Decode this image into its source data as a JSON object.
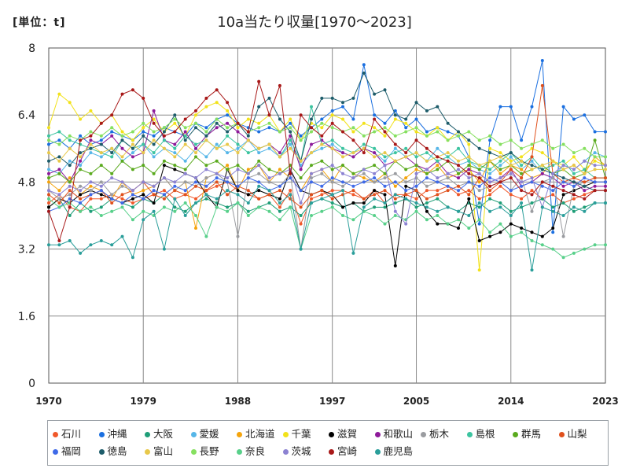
{
  "chart_data": {
    "type": "line",
    "title": "10a当たり収量[1970～2023]",
    "unit_label": "[単位：t]",
    "x_ticks": [
      "1970",
      "1979",
      "1988",
      "1997",
      "2005",
      "2014",
      "2023"
    ],
    "x_range": [
      1970,
      2023
    ],
    "y_ticks": [
      "0",
      "1.6",
      "3.2",
      "4.8",
      "6.4",
      "8"
    ],
    "ylim": [
      0,
      8
    ],
    "grid": true,
    "legend_position": "bottom",
    "series": [
      {
        "name": "石川",
        "color": "#f0582a",
        "values": [
          4.3,
          4.5,
          4.2,
          4.1,
          4.4,
          4.4,
          4.5,
          4.4,
          4.3,
          4.4,
          4.5,
          4.6,
          4.4,
          4.5,
          4.4,
          4.6,
          4.7,
          4.8,
          4.6,
          4.5,
          4.4,
          4.5,
          4.2,
          4.6,
          3.8,
          4.4,
          4.5,
          4.6,
          4.6,
          4.5,
          4.4,
          4.6,
          4.3,
          4.5,
          4.5,
          4.4,
          4.6,
          4.6,
          4.7,
          4.5,
          4.6,
          4.4,
          4.5,
          4.7,
          4.5,
          4.4,
          4.6,
          4.4,
          4.5,
          4.3,
          4.4,
          4.5,
          4.6,
          4.6
        ]
      },
      {
        "name": "沖縄",
        "color": "#1a6fe0",
        "values": [
          5.7,
          5.8,
          5.6,
          5.9,
          5.7,
          5.8,
          6.0,
          5.9,
          5.8,
          6.0,
          5.9,
          6.1,
          6.0,
          5.9,
          6.2,
          6.1,
          6.3,
          6.4,
          6.2,
          6.1,
          6.0,
          6.1,
          6.0,
          6.2,
          5.9,
          6.1,
          6.3,
          6.5,
          6.6,
          6.3,
          7.6,
          6.4,
          6.2,
          6.5,
          6.1,
          6.3,
          6.0,
          6.1,
          6.0,
          5.9,
          5.4,
          3.8,
          5.8,
          6.6,
          6.6,
          5.8,
          6.6,
          7.7,
          3.6,
          6.6,
          6.3,
          6.4,
          6.0,
          6.0
        ]
      },
      {
        "name": "大阪",
        "color": "#1f9e78",
        "values": [
          4.2,
          4.4,
          4.0,
          4.3,
          4.1,
          4.2,
          4.4,
          4.3,
          4.2,
          4.4,
          4.3,
          4.5,
          4.2,
          4.1,
          4.3,
          4.4,
          4.3,
          4.2,
          4.3,
          4.1,
          4.2,
          4.3,
          4.1,
          4.2,
          4.0,
          4.3,
          4.4,
          4.3,
          4.2,
          4.3,
          4.1,
          4.2,
          4.2,
          4.3,
          4.4,
          4.2,
          4.3,
          4.4,
          4.2,
          4.1,
          4.3,
          4.2,
          4.4,
          4.3,
          4.1,
          4.2,
          4.3,
          4.4,
          4.2,
          4.3,
          4.1,
          4.2,
          4.3,
          4.3
        ]
      },
      {
        "name": "愛媛",
        "color": "#56b6e8",
        "values": [
          5.1,
          5.0,
          5.3,
          5.2,
          5.5,
          5.4,
          5.6,
          5.3,
          5.5,
          5.7,
          5.4,
          5.6,
          5.5,
          5.3,
          5.6,
          5.4,
          5.7,
          5.5,
          5.6,
          5.8,
          5.5,
          5.6,
          5.4,
          5.7,
          5.2,
          5.5,
          5.6,
          5.7,
          5.5,
          5.4,
          5.6,
          5.5,
          5.3,
          5.6,
          5.4,
          5.5,
          5.3,
          5.6,
          5.4,
          5.2,
          5.3,
          5.1,
          5.0,
          5.2,
          5.4,
          5.1,
          5.3,
          5.0,
          4.9,
          5.2,
          5.1,
          5.3,
          5.5,
          5.4
        ]
      },
      {
        "name": "北海道",
        "color": "#f5a40c",
        "values": [
          4.8,
          4.6,
          4.9,
          4.5,
          4.7,
          4.6,
          4.4,
          4.8,
          4.5,
          4.6,
          4.7,
          4.9,
          4.6,
          4.8,
          3.7,
          4.9,
          5.0,
          5.2,
          4.6,
          5.1,
          5.2,
          4.8,
          5.1,
          4.9,
          4.6,
          5.0,
          5.1,
          4.8,
          5.2,
          5.0,
          4.9,
          4.8,
          5.0,
          4.7,
          4.9,
          5.1,
          5.0,
          5.2,
          4.9,
          5.0,
          5.1,
          4.8,
          5.3,
          5.0,
          5.2,
          5.1,
          4.9,
          5.0,
          5.3,
          5.1,
          5.2,
          5.0,
          5.4,
          5.2
        ]
      },
      {
        "name": "千葉",
        "color": "#f2e21a",
        "values": [
          6.1,
          6.9,
          6.7,
          6.3,
          6.5,
          6.2,
          6.4,
          6.0,
          5.8,
          6.1,
          6.3,
          6.0,
          6.2,
          5.9,
          6.4,
          6.6,
          6.7,
          6.5,
          6.1,
          6.3,
          6.2,
          6.4,
          6.0,
          6.3,
          5.8,
          6.2,
          6.1,
          6.4,
          6.3,
          6.0,
          6.2,
          6.1,
          5.9,
          6.3,
          6.2,
          6.0,
          5.9,
          6.1,
          5.8,
          6.0,
          5.7,
          2.7,
          5.6,
          5.5,
          5.3,
          5.4,
          5.6,
          5.5,
          5.3,
          5.2,
          5.4,
          5.1,
          5.3,
          5.2
        ]
      },
      {
        "name": "滋賀",
        "color": "#000000",
        "values": [
          4.2,
          4.4,
          4.3,
          4.5,
          4.6,
          4.5,
          4.4,
          4.3,
          4.4,
          4.5,
          4.3,
          5.2,
          5.1,
          5.0,
          4.9,
          4.5,
          4.2,
          5.1,
          4.6,
          4.5,
          4.6,
          4.5,
          4.4,
          5.1,
          4.6,
          4.5,
          4.6,
          4.5,
          4.2,
          4.3,
          4.3,
          4.6,
          4.5,
          2.8,
          4.7,
          4.6,
          4.1,
          3.8,
          3.8,
          3.7,
          4.4,
          3.4,
          3.5,
          3.6,
          3.8,
          3.7,
          3.6,
          3.5,
          3.7,
          4.5,
          4.6,
          4.7,
          4.8,
          4.8
        ]
      },
      {
        "name": "和歌山",
        "color": "#8e1a9a",
        "values": [
          5.0,
          5.1,
          4.8,
          5.3,
          5.8,
          5.7,
          5.9,
          5.6,
          5.4,
          5.5,
          6.5,
          5.8,
          5.7,
          6.0,
          5.6,
          5.9,
          6.1,
          6.2,
          6.0,
          5.8,
          5.6,
          5.7,
          5.5,
          5.9,
          5.1,
          5.7,
          5.8,
          5.6,
          5.5,
          5.4,
          5.6,
          5.5,
          5.2,
          5.3,
          5.4,
          5.2,
          5.1,
          5.3,
          5.0,
          4.9,
          5.1,
          5.0,
          4.8,
          4.9,
          5.1,
          4.7,
          4.8,
          5.0,
          4.9,
          4.7,
          4.8,
          4.6,
          4.7,
          4.7
        ]
      },
      {
        "name": "栃木",
        "color": "#9a9ca0",
        "values": [
          4.6,
          4.4,
          4.5,
          4.7,
          4.6,
          4.8,
          4.5,
          4.7,
          4.6,
          4.8,
          4.7,
          4.9,
          4.6,
          4.8,
          4.7,
          4.9,
          5.0,
          4.8,
          3.5,
          4.9,
          5.0,
          4.8,
          4.7,
          5.0,
          3.2,
          4.9,
          5.0,
          4.8,
          4.7,
          4.9,
          5.0,
          4.8,
          4.9,
          5.0,
          4.8,
          4.9,
          4.7,
          4.8,
          4.9,
          4.7,
          4.8,
          4.6,
          4.7,
          4.8,
          4.6,
          4.9,
          4.1,
          4.8,
          4.9,
          3.5,
          4.7,
          4.8,
          4.9,
          4.9
        ]
      },
      {
        "name": "島根",
        "color": "#3cc4a0",
        "values": [
          5.9,
          6.0,
          5.8,
          5.7,
          5.6,
          5.5,
          5.4,
          5.8,
          5.6,
          5.7,
          5.5,
          5.8,
          5.6,
          5.9,
          5.7,
          5.8,
          5.6,
          5.9,
          5.7,
          5.5,
          5.6,
          5.7,
          5.4,
          5.8,
          5.3,
          6.6,
          5.7,
          5.8,
          5.6,
          5.5,
          5.7,
          5.6,
          5.4,
          5.5,
          5.6,
          5.4,
          5.5,
          5.3,
          5.4,
          5.6,
          5.3,
          5.2,
          5.1,
          5.3,
          5.5,
          5.2,
          5.4,
          5.1,
          5.2,
          5.3,
          5.0,
          5.1,
          4.9,
          4.9
        ]
      },
      {
        "name": "群馬",
        "color": "#5aaa1e",
        "values": [
          4.9,
          5.0,
          4.8,
          5.1,
          5.0,
          5.2,
          5.0,
          5.3,
          5.1,
          5.2,
          5.0,
          5.3,
          5.2,
          5.1,
          5.4,
          5.2,
          5.3,
          5.1,
          5.2,
          5.0,
          5.3,
          5.1,
          5.0,
          5.2,
          4.9,
          5.2,
          5.3,
          5.1,
          5.2,
          5.0,
          5.1,
          5.2,
          5.0,
          5.3,
          5.1,
          5.2,
          5.0,
          5.1,
          5.3,
          5.0,
          5.2,
          5.1,
          5.3,
          5.1,
          5.2,
          5.0,
          5.1,
          5.2,
          5.0,
          5.1,
          4.9,
          5.0,
          5.8,
          4.9
        ]
      },
      {
        "name": "山梨",
        "color": "#e0501c",
        "values": [
          4.5,
          4.3,
          4.6,
          4.4,
          4.5,
          4.6,
          4.3,
          4.5,
          4.6,
          4.8,
          4.5,
          4.4,
          4.6,
          4.5,
          4.7,
          4.6,
          4.8,
          4.5,
          4.7,
          4.6,
          4.4,
          4.5,
          4.6,
          4.4,
          4.2,
          4.5,
          4.6,
          4.4,
          4.5,
          4.6,
          4.4,
          4.5,
          4.6,
          4.4,
          4.5,
          4.6,
          4.4,
          4.5,
          4.6,
          4.7,
          4.5,
          4.9,
          4.6,
          4.8,
          5.1,
          4.9,
          5.4,
          7.1,
          5.0,
          4.8,
          4.9,
          4.8,
          4.9,
          4.9
        ]
      },
      {
        "name": "福岡",
        "color": "#3f6ae8",
        "values": [
          4.1,
          4.2,
          4.4,
          4.3,
          4.5,
          4.6,
          4.4,
          4.3,
          4.5,
          4.4,
          4.6,
          4.5,
          4.7,
          4.6,
          4.8,
          4.7,
          4.9,
          4.8,
          4.7,
          4.9,
          4.8,
          4.6,
          4.7,
          4.9,
          4.6,
          4.8,
          4.7,
          4.9,
          4.8,
          4.7,
          4.8,
          4.9,
          4.7,
          4.8,
          4.6,
          4.7,
          4.9,
          4.8,
          4.7,
          4.6,
          4.8,
          4.7,
          4.9,
          4.8,
          4.6,
          4.7,
          4.8,
          4.7,
          4.6,
          4.8,
          4.7,
          4.9,
          4.8,
          4.8
        ]
      },
      {
        "name": "徳島",
        "color": "#1d5c6a",
        "values": [
          5.3,
          5.4,
          5.2,
          5.5,
          5.6,
          5.7,
          5.5,
          5.8,
          5.6,
          5.9,
          5.7,
          6.0,
          6.4,
          5.8,
          6.1,
          5.9,
          6.2,
          6.0,
          6.2,
          5.9,
          6.6,
          6.8,
          6.3,
          6.0,
          5.3,
          6.3,
          6.8,
          6.8,
          6.7,
          6.8,
          7.4,
          6.9,
          7.0,
          6.4,
          6.3,
          6.7,
          6.5,
          6.6,
          6.2,
          6.0,
          5.8,
          5.6,
          5.5,
          5.4,
          5.5,
          5.3,
          5.2,
          5.1,
          5.0,
          4.9,
          4.8,
          4.7,
          4.6,
          4.6
        ]
      },
      {
        "name": "富山",
        "color": "#e8c84a",
        "values": [
          5.5,
          5.3,
          5.6,
          5.4,
          5.7,
          5.5,
          5.6,
          5.4,
          5.7,
          5.5,
          5.8,
          5.6,
          5.4,
          5.7,
          5.5,
          5.8,
          5.6,
          5.7,
          5.5,
          5.8,
          5.6,
          5.7,
          5.4,
          5.6,
          5.3,
          5.5,
          5.7,
          5.6,
          5.4,
          5.5,
          5.6,
          5.4,
          5.5,
          5.3,
          5.4,
          5.5,
          5.3,
          5.4,
          5.5,
          5.3,
          5.4,
          5.2,
          5.3,
          5.4,
          5.2,
          5.3,
          5.1,
          5.2,
          5.3,
          5.1,
          5.2,
          5.0,
          5.1,
          5.1
        ]
      },
      {
        "name": "長野",
        "color": "#86e060",
        "values": [
          5.8,
          5.7,
          5.9,
          5.8,
          6.0,
          5.9,
          6.1,
          5.9,
          6.0,
          6.2,
          6.0,
          6.1,
          6.3,
          6.1,
          6.2,
          6.0,
          6.3,
          6.1,
          6.2,
          6.0,
          6.1,
          6.2,
          6.0,
          6.1,
          5.8,
          6.0,
          6.2,
          6.1,
          6.0,
          6.1,
          5.9,
          6.0,
          6.1,
          5.9,
          6.0,
          6.1,
          5.9,
          6.0,
          5.8,
          5.9,
          6.0,
          5.8,
          5.9,
          5.7,
          5.8,
          5.6,
          5.7,
          5.8,
          5.6,
          5.7,
          5.5,
          5.6,
          5.4,
          5.4
        ]
      },
      {
        "name": "奈良",
        "color": "#58d08a",
        "values": [
          4.4,
          4.2,
          4.3,
          4.1,
          4.2,
          4.0,
          4.1,
          4.2,
          3.9,
          4.1,
          4.0,
          4.2,
          4.1,
          4.3,
          4.0,
          3.5,
          4.2,
          4.1,
          4.3,
          4.0,
          4.2,
          4.1,
          3.9,
          4.2,
          3.2,
          4.0,
          4.1,
          4.2,
          4.0,
          3.9,
          4.1,
          4.0,
          3.8,
          4.0,
          3.9,
          4.1,
          3.9,
          4.0,
          3.8,
          3.9,
          3.7,
          3.9,
          3.6,
          3.8,
          3.5,
          3.6,
          3.4,
          3.3,
          3.2,
          3.0,
          3.1,
          3.2,
          3.3,
          3.3
        ]
      },
      {
        "name": "茨城",
        "color": "#8c82d2",
        "values": [
          4.6,
          4.5,
          4.7,
          4.6,
          4.8,
          4.7,
          4.9,
          4.8,
          4.6,
          4.8,
          4.7,
          4.9,
          4.8,
          5.0,
          4.9,
          5.1,
          5.0,
          4.9,
          5.1,
          5.0,
          5.2,
          4.9,
          5.0,
          5.1,
          4.3,
          5.0,
          5.1,
          5.2,
          5.0,
          4.9,
          5.1,
          5.0,
          5.2,
          4.1,
          3.8,
          5.0,
          5.1,
          4.9,
          5.0,
          5.1,
          4.9,
          5.0,
          4.8,
          4.9,
          5.0,
          4.8,
          4.9,
          4.2,
          5.0,
          5.2,
          5.1,
          5.3,
          5.2,
          5.2
        ]
      },
      {
        "name": "宮崎",
        "color": "#a81818",
        "values": [
          4.1,
          3.4,
          4.2,
          5.8,
          5.9,
          6.2,
          6.4,
          6.9,
          7.0,
          6.8,
          6.2,
          5.9,
          6.0,
          6.3,
          6.5,
          6.8,
          7.0,
          6.7,
          6.2,
          6.0,
          7.2,
          6.4,
          7.1,
          5.0,
          6.4,
          6.1,
          5.9,
          6.2,
          6.0,
          5.8,
          5.5,
          6.3,
          6.0,
          5.7,
          5.5,
          5.8,
          5.6,
          5.4,
          5.3,
          5.2,
          5.0,
          4.9,
          4.7,
          4.8,
          4.9,
          4.6,
          4.5,
          4.8,
          4.7,
          4.6,
          4.5,
          4.4,
          4.6,
          4.6
        ]
      },
      {
        "name": "鹿児島",
        "color": "#2a9e9a",
        "values": [
          3.3,
          3.3,
          3.4,
          3.1,
          3.3,
          3.4,
          3.3,
          3.5,
          3.0,
          3.9,
          4.1,
          3.2,
          4.4,
          4.0,
          4.3,
          4.5,
          4.4,
          4.6,
          4.5,
          4.3,
          4.7,
          4.6,
          4.3,
          4.5,
          3.2,
          4.3,
          4.4,
          4.5,
          4.6,
          3.1,
          4.2,
          4.4,
          4.3,
          4.5,
          4.4,
          4.3,
          4.2,
          4.1,
          4.2,
          4.1,
          4.0,
          4.3,
          4.1,
          4.2,
          4.0,
          4.3,
          2.7,
          4.2,
          4.1,
          4.0,
          4.2,
          4.1,
          4.3,
          4.3
        ]
      }
    ]
  }
}
